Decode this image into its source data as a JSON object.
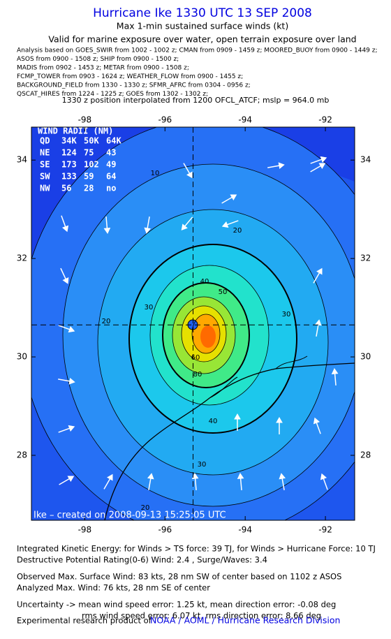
{
  "header": {
    "title": "Hurricane Ike 1330 UTC 13 SEP 2008",
    "subtitle": "Max 1-min sustained surface winds (kt)",
    "valid": "Valid for marine exposure over water, open terrain exposure over land",
    "sources": [
      "Analysis based on  GOES_SWIR from 1002 - 1002 z;  CMAN from 0909 - 1459 z;  MOORED_BUOY from 0900 - 1449 z;",
      "ASOS from 0900 - 1508 z;  SHIP from 0900 - 1500 z;",
      "MADIS from 0902 - 1453 z;  METAR from 0900 - 1508 z;",
      "FCMP_TOWER from 0903 - 1624 z;  WEATHER_FLOW from 0900 - 1455 z;",
      "BACKGROUND_FIELD from 1330 - 1330 z;  SFMR_AFRC from 0304 - 0956 z;",
      "QSCAT_HIRES from 1224 - 1225 z;  GOES from 1302 - 1302 z;"
    ],
    "position_note": "1330 z position interpolated from 1200 OFCL_ATCF; mslp = 964.0 mb"
  },
  "map": {
    "xlim": [
      -99.33,
      -91.27
    ],
    "ylim": [
      26.68,
      34.67
    ],
    "xticks": [
      -98,
      -96,
      -94,
      -92
    ],
    "yticks": [
      28,
      30,
      32,
      34
    ],
    "center": [
      -95.3,
      30.65
    ],
    "contour_labels": [
      "10",
      "20",
      "20",
      "30",
      "30",
      "40",
      "50",
      "60",
      "80",
      "40",
      "30",
      "20"
    ],
    "credit": "Ike – created on 2008-09-13 15:25:05 UTC"
  },
  "wind_radii": {
    "title": "WIND RADII (NM)",
    "columns": [
      "QD",
      "34K",
      "50K",
      "64K"
    ],
    "rows": [
      [
        "NE",
        "124",
        "75",
        "43"
      ],
      [
        "SE",
        "173",
        "102",
        "49"
      ],
      [
        "SW",
        "133",
        "59",
        "64"
      ],
      [
        "NW",
        "56",
        "28",
        "no"
      ]
    ]
  },
  "footer": {
    "lines": [
      "Integrated Kinetic Energy:  for Winds > TS force: 39 TJ,  for Winds > Hurricane Force: 10 TJ",
      "Destructive Potential Rating(0-6)   Wind: 2.4 , Surge/Waves: 3.4",
      "Observed Max. Surface Wind: 83 kts, 28 nm SW of center based on 1102 z ASOS",
      "Analyzed Max. Wind: 76 kts, 28 nm SE of center",
      "Uncertainty -> mean wind speed error: 1.25 kt,   mean direction error:  -0.08 deg",
      "rms wind speed error: 6.07 kt,   rms direction error: 8.66 deg"
    ],
    "product": "Experimental research product of",
    "org": "NOAA / AOML / Hurricane Research Division"
  }
}
